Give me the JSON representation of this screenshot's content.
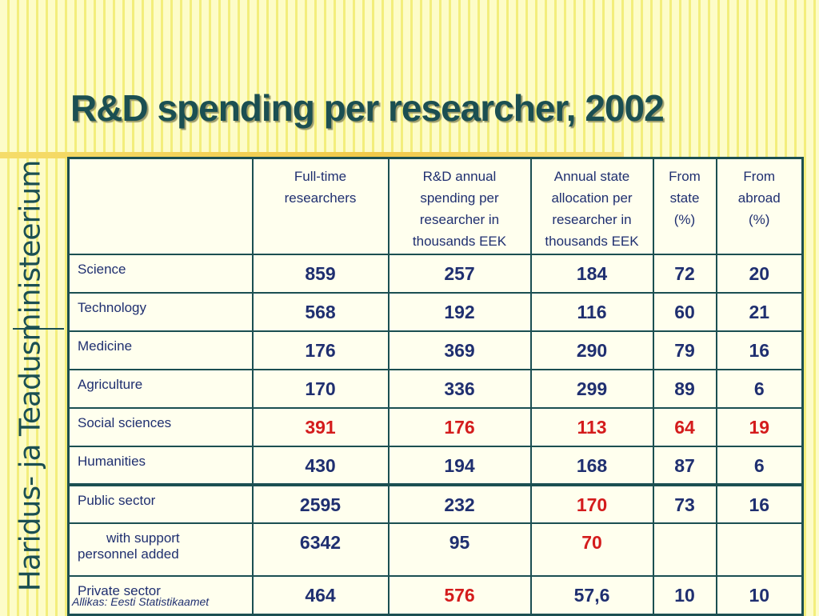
{
  "title": "R&D spending per researcher, 2002",
  "brand_vertical": "Haridus- ja Teadusministeerium",
  "source": "Allikas: Eesti Statistikaamet",
  "colors": {
    "teal": "#1b4f52",
    "navy_text": "#1f2f70",
    "highlight_red": "#d41c1c",
    "background": "#fdfcc8"
  },
  "table": {
    "headers": [
      "",
      "Full-time researchers",
      "R&D annual spending per researcher in thousands EEK",
      "Annual state allocation per researcher in thousands EEK",
      "From state (%)",
      "From abroad (%)"
    ],
    "header_lines": {
      "h1": [
        "Full-time",
        "researchers"
      ],
      "h2": [
        "R&D annual",
        "spending per",
        "researcher in",
        "thousands EEK"
      ],
      "h3": [
        "Annual state",
        "allocation per",
        "researcher in",
        "thousands EEK"
      ],
      "h4": [
        "From",
        "state",
        "(%)"
      ],
      "h5": [
        "From",
        "abroad",
        "(%)"
      ]
    },
    "rows": [
      {
        "label": "Science",
        "values": [
          "859",
          "257",
          "184",
          "72",
          "20"
        ]
      },
      {
        "label": "Technology",
        "values": [
          "568",
          "192",
          "116",
          "60",
          "21"
        ]
      },
      {
        "label": "Medicine",
        "values": [
          "176",
          "369",
          "290",
          "79",
          "16"
        ]
      },
      {
        "label": "Agriculture",
        "values": [
          "170",
          "336",
          "299",
          "89",
          "6"
        ]
      },
      {
        "label": "Social sciences",
        "values": [
          "391",
          "176",
          "113",
          "64",
          "19"
        ]
      },
      {
        "label": "Humanities",
        "values": [
          "430",
          "194",
          "168",
          "87",
          "6"
        ]
      },
      {
        "label": "Public sector",
        "values": [
          "2595",
          "232",
          "170",
          "73",
          "16"
        ]
      },
      {
        "label_lines": [
          "with support",
          "personnel added"
        ],
        "values": [
          "6342",
          "95",
          "70",
          "",
          ""
        ]
      },
      {
        "label": "Private sector",
        "values": [
          "464",
          "576",
          "57,6",
          "10",
          "10"
        ]
      }
    ]
  }
}
